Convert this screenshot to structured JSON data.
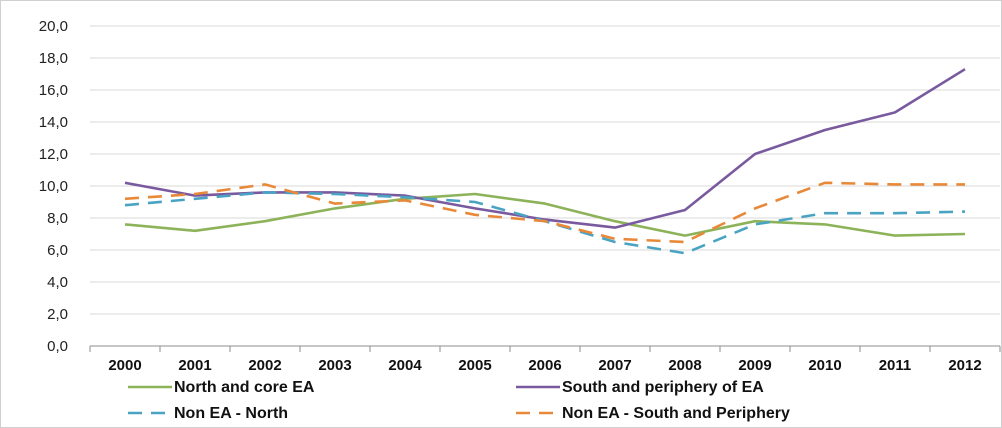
{
  "chart_data": {
    "type": "line",
    "title": "",
    "xlabel": "",
    "ylabel": "",
    "categories": [
      "2000",
      "2001",
      "2002",
      "2003",
      "2004",
      "2005",
      "2006",
      "2007",
      "2008",
      "2009",
      "2010",
      "2011",
      "2012"
    ],
    "ylim": [
      0,
      20
    ],
    "y_ticks": [
      "0,0",
      "2,0",
      "4,0",
      "6,0",
      "8,0",
      "10,0",
      "12,0",
      "14,0",
      "16,0",
      "18,0",
      "20,0"
    ],
    "grid": "horizontal",
    "legend_position": "bottom",
    "series": [
      {
        "name": "North and core EA",
        "color": "#8db35a",
        "style": "solid",
        "values": [
          7.6,
          7.2,
          7.8,
          8.6,
          9.2,
          9.5,
          8.9,
          7.8,
          6.9,
          7.8,
          7.6,
          6.9,
          7.0
        ]
      },
      {
        "name": "South and periphery of EA",
        "color": "#7a5a9e",
        "style": "solid",
        "values": [
          10.2,
          9.4,
          9.6,
          9.6,
          9.4,
          8.6,
          7.9,
          7.4,
          8.5,
          12.0,
          13.5,
          14.6,
          17.3
        ]
      },
      {
        "name": "Non EA - North",
        "color": "#4aa3c3",
        "style": "dashed",
        "values": [
          8.8,
          9.2,
          9.6,
          9.5,
          9.3,
          9.0,
          7.8,
          6.5,
          5.8,
          7.6,
          8.3,
          8.3,
          8.4
        ]
      },
      {
        "name": "Non EA - South and Periphery",
        "color": "#e8893a",
        "style": "dashed",
        "values": [
          9.2,
          9.5,
          10.1,
          8.9,
          9.1,
          8.2,
          7.8,
          6.7,
          6.5,
          8.6,
          10.2,
          10.1,
          10.1
        ]
      }
    ]
  }
}
